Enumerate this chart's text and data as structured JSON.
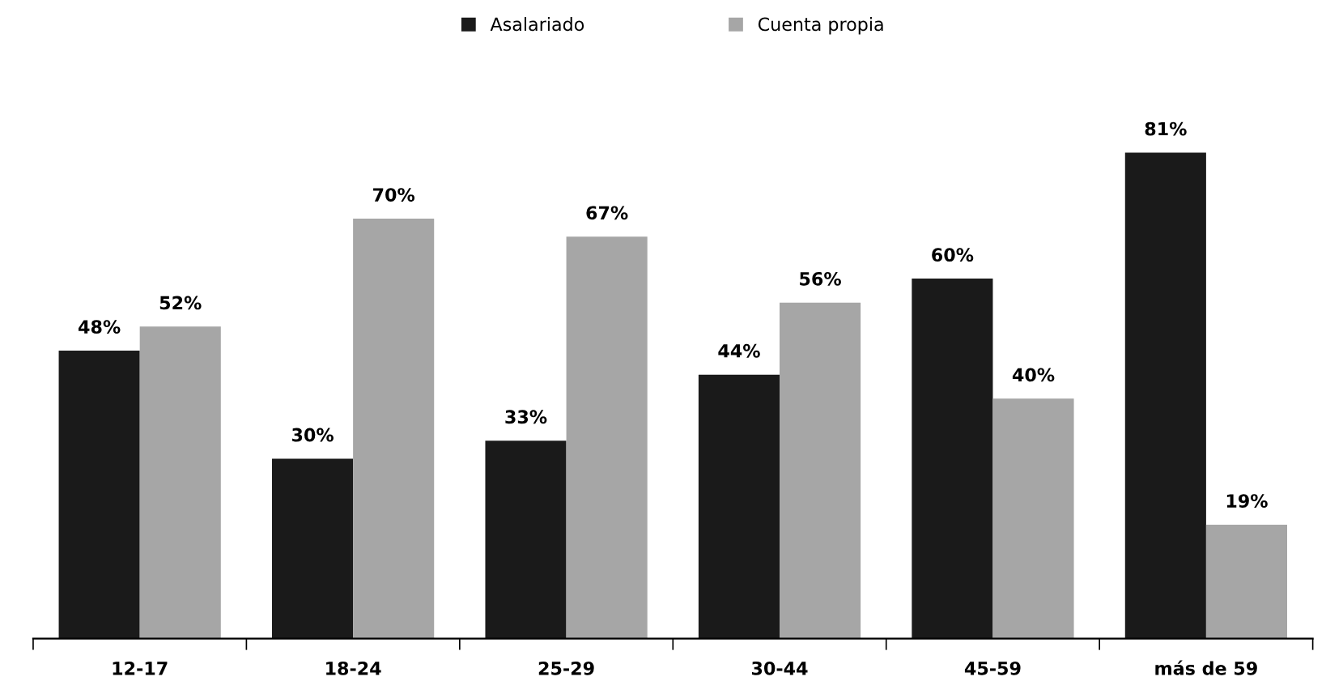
{
  "chart_data": {
    "type": "bar",
    "categories": [
      "12-17",
      "18-24",
      "25-29",
      "30-44",
      "45-59",
      "más de 59"
    ],
    "series": [
      {
        "name": "Asalariado",
        "color": "#1a1a1a",
        "values": [
          48,
          30,
          33,
          44,
          60,
          81
        ],
        "value_labels": [
          "48%",
          "30%",
          "33%",
          "44%",
          "60%",
          "81%"
        ]
      },
      {
        "name": "Cuenta propia",
        "color": "#a6a6a6",
        "values": [
          52,
          70,
          67,
          56,
          40,
          19
        ],
        "value_labels": [
          "52%",
          "70%",
          "67%",
          "56%",
          "40%",
          "19%"
        ]
      }
    ],
    "legend": "top",
    "tick_labels": "x",
    "grid": false
  }
}
